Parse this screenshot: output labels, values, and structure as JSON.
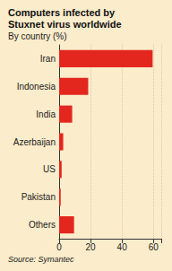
{
  "chart_data": {
    "type": "bar",
    "orientation": "horizontal",
    "title": "Computers infected by Stuxnet virus worldwide",
    "subtitle": "By country (%)",
    "annotations": [
      "Source: Symantec"
    ],
    "categories": [
      "Iran",
      "Indonesia",
      "India",
      "Azerbaijan",
      "US",
      "Pakistan",
      "Others"
    ],
    "values": [
      59.5,
      18.5,
      8.3,
      2.6,
      1.6,
      1.0,
      9.5
    ],
    "color": "#e3271f",
    "xlim": [
      0,
      65
    ],
    "xticks": [
      0,
      20,
      40,
      60
    ],
    "grid": true
  }
}
